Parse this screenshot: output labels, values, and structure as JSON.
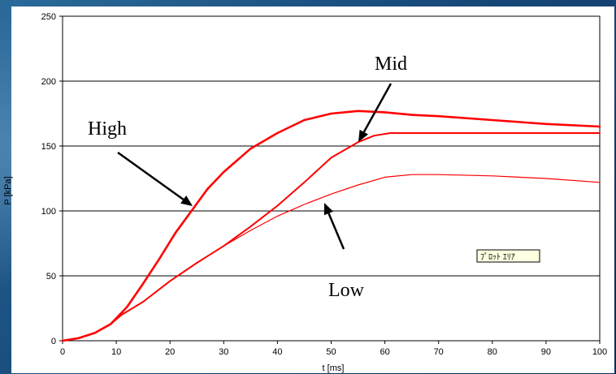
{
  "chart_data": {
    "type": "line",
    "xlabel": "t [ms]",
    "ylabel": "P [kPa]",
    "xlim": [
      0,
      100
    ],
    "ylim": [
      0,
      250
    ],
    "xticks": [
      0,
      10,
      20,
      30,
      40,
      50,
      60,
      70,
      80,
      90,
      100
    ],
    "yticks": [
      0,
      50,
      100,
      150,
      200,
      250
    ],
    "grid": "horizontal",
    "series": [
      {
        "name": "High",
        "color": "#ff0000",
        "x": [
          0,
          3,
          6,
          9,
          12,
          15,
          18,
          21,
          24,
          27,
          30,
          35,
          40,
          45,
          50,
          55,
          60,
          65,
          70,
          80,
          90,
          100
        ],
        "y": [
          0,
          2,
          6,
          13,
          26,
          44,
          63,
          83,
          100,
          117,
          130,
          148,
          160,
          170,
          175,
          177,
          176,
          174,
          173,
          170,
          167,
          165
        ]
      },
      {
        "name": "Mid",
        "color": "#ff0000",
        "x": [
          0,
          3,
          6,
          9,
          11,
          15,
          20,
          25,
          30,
          35,
          40,
          45,
          50,
          55,
          58,
          61,
          65,
          70,
          80,
          90,
          100
        ],
        "y": [
          0,
          2,
          6,
          13,
          20,
          30,
          46,
          60,
          73,
          88,
          104,
          122,
          141,
          153,
          158,
          160,
          160,
          160,
          160,
          160,
          160
        ]
      },
      {
        "name": "Low",
        "color": "#ff0000",
        "x": [
          0,
          3,
          6,
          9,
          11,
          15,
          20,
          25,
          30,
          35,
          40,
          45,
          50,
          55,
          60,
          65,
          70,
          80,
          90,
          100
        ],
        "y": [
          0,
          2,
          6,
          13,
          20,
          30,
          46,
          60,
          73,
          85,
          96,
          105,
          113,
          120,
          126,
          128,
          128,
          127,
          125,
          122
        ]
      }
    ],
    "annotations": {
      "high": "High",
      "mid": "Mid",
      "low": "Low",
      "tooltip": "ﾌﾟﾛｯﾄ ｴﾘｱ"
    }
  }
}
